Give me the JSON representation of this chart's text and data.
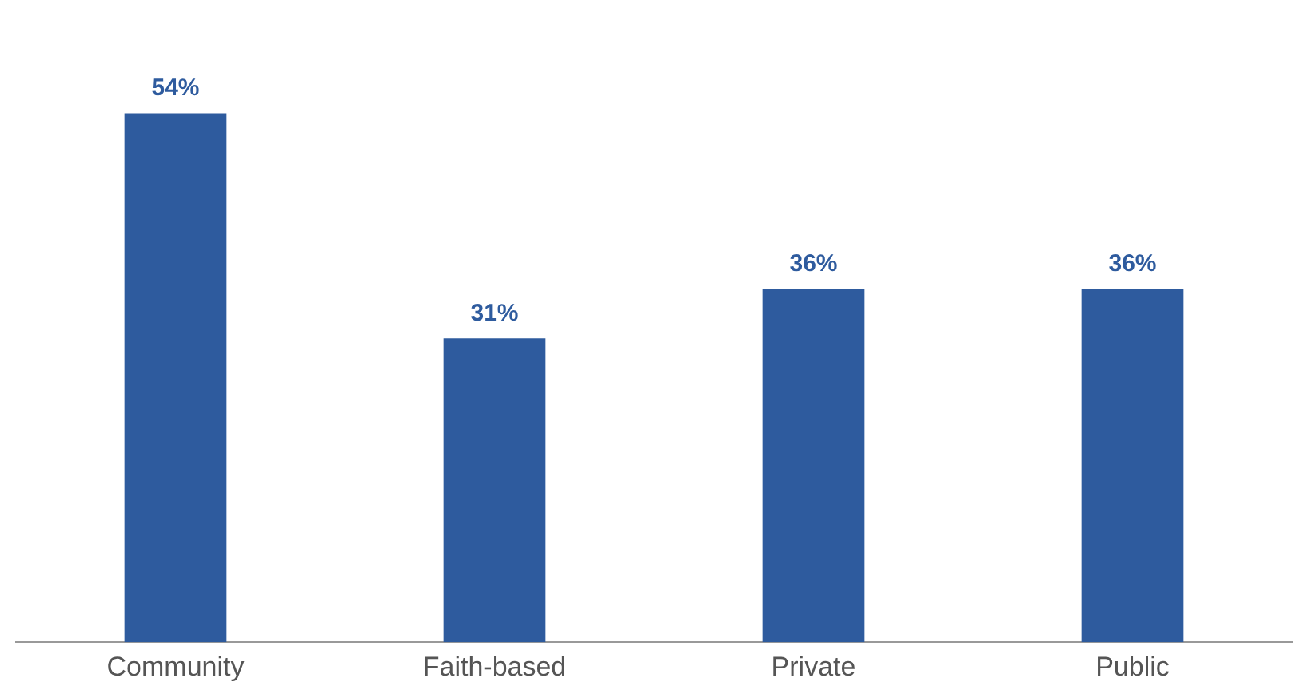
{
  "chart_data": {
    "type": "bar",
    "categories": [
      "Community",
      "Faith-based",
      "Private",
      "Public"
    ],
    "values": [
      54,
      31,
      36,
      36
    ],
    "value_labels": [
      "54%",
      "31%",
      "36%",
      "36%"
    ],
    "color": "#2e5b9e",
    "grid": false,
    "legend": false
  }
}
